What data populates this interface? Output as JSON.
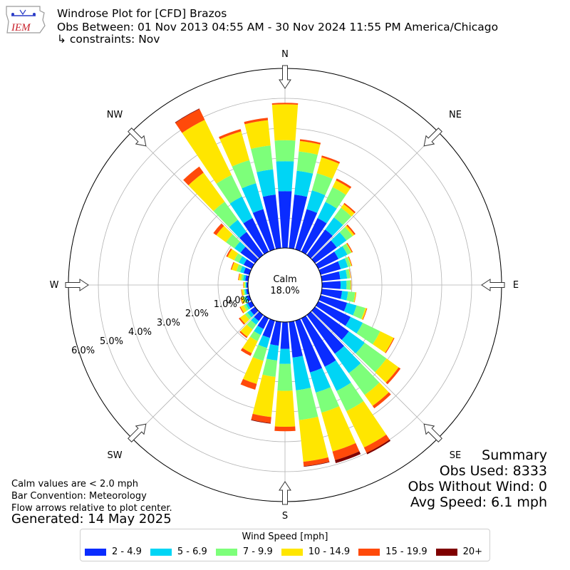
{
  "header": {
    "title": "Windrose Plot for [CFD] Brazos",
    "obs_between": "Obs Between: 01 Nov 2013 04:55 AM - 30 Nov 2024 11:55 PM America/Chicago",
    "constraints": "↳ constraints: Nov",
    "logo_text": "IEM"
  },
  "footer": {
    "calm_note": "Calm values are < 2.0 mph",
    "bar_convention": "Bar Convention: Meteorology",
    "flow_note": "Flow arrows relative to plot center.",
    "generated": "Generated: 14 May 2025"
  },
  "summary": {
    "title": "Summary",
    "obs_used": "Obs Used: 8333",
    "obs_without_wind": "Obs Without Wind: 0",
    "avg_speed": "Avg Speed: 6.1 mph"
  },
  "colors": {
    "bins": [
      "#0a2cff",
      "#00d5f5",
      "#7dff7a",
      "#ffe600",
      "#ff4a0a",
      "#7f0000"
    ],
    "grid": "#b3b3b3",
    "arrow_fill": "#ffffff"
  },
  "chart_data": {
    "type": "windrose",
    "calm": {
      "label": "Calm",
      "value_label": "18.0%",
      "value": 18.0
    },
    "radial_unit": "percent of observations",
    "radial_ticks": [
      "0.0%",
      "1.0%",
      "2.0%",
      "3.0%",
      "4.0%",
      "5.0%",
      "6.0%"
    ],
    "rmax": 6.0,
    "compass": [
      {
        "label": "N",
        "angle": 0
      },
      {
        "label": "NE",
        "angle": 45
      },
      {
        "label": "E",
        "angle": 90
      },
      {
        "label": "SE",
        "angle": 135
      },
      {
        "label": "S",
        "angle": 180
      },
      {
        "label": "SW",
        "angle": 225
      },
      {
        "label": "W",
        "angle": 270
      },
      {
        "label": "NW",
        "angle": 315
      }
    ],
    "legend_title": "Wind Speed [mph]",
    "bins": [
      "2 - 4.9",
      "5 - 6.9",
      "7 - 9.9",
      "10 - 14.9",
      "15 - 19.9",
      "20+"
    ],
    "sector_width_deg": 10,
    "directions": [
      0,
      10,
      20,
      30,
      40,
      50,
      60,
      70,
      80,
      90,
      100,
      110,
      120,
      130,
      140,
      150,
      160,
      170,
      180,
      190,
      200,
      210,
      220,
      230,
      240,
      250,
      260,
      270,
      280,
      290,
      300,
      310,
      320,
      330,
      340,
      350
    ],
    "cumulative": [
      [
        1.9,
        2.9,
        3.6,
        4.8,
        4.85,
        4.85
      ],
      [
        1.8,
        2.6,
        3.25,
        3.6,
        3.66,
        3.66
      ],
      [
        1.4,
        2.05,
        2.65,
        3.2,
        3.26,
        3.26
      ],
      [
        1.25,
        1.85,
        2.4,
        2.65,
        2.72,
        2.72
      ],
      [
        1.05,
        1.55,
        1.95,
        2.1,
        2.15,
        2.15
      ],
      [
        0.9,
        1.3,
        1.55,
        1.62,
        1.67,
        1.67
      ],
      [
        0.75,
        1.08,
        1.22,
        1.25,
        1.28,
        1.28
      ],
      [
        0.7,
        0.95,
        1.05,
        1.08,
        1.1,
        1.1
      ],
      [
        0.62,
        0.85,
        0.95,
        0.97,
        0.98,
        0.98
      ],
      [
        0.62,
        0.82,
        0.95,
        0.97,
        0.98,
        0.98
      ],
      [
        0.68,
        0.88,
        1.12,
        1.15,
        1.16,
        1.16
      ],
      [
        0.92,
        1.25,
        1.55,
        1.6,
        1.62,
        1.62
      ],
      [
        1.2,
        1.65,
        2.3,
        2.8,
        2.83,
        2.83
      ],
      [
        1.4,
        2.05,
        2.95,
        3.45,
        3.53,
        3.53
      ],
      [
        1.6,
        2.4,
        3.3,
        3.75,
        3.85,
        3.85
      ],
      [
        1.8,
        2.7,
        3.45,
        4.8,
        5.0,
        5.05
      ],
      [
        1.8,
        2.5,
        3.2,
        4.55,
        4.85,
        4.95
      ],
      [
        1.2,
        2.3,
        3.3,
        4.7,
        4.85,
        4.87
      ],
      [
        0.9,
        1.4,
        2.3,
        3.5,
        3.65,
        3.65
      ],
      [
        0.8,
        1.3,
        1.85,
        3.2,
        3.4,
        3.42
      ],
      [
        0.6,
        0.95,
        1.4,
        2.2,
        2.4,
        2.4
      ],
      [
        0.4,
        0.62,
        0.85,
        1.3,
        1.4,
        1.4
      ],
      [
        0.25,
        0.4,
        0.6,
        0.9,
        0.95,
        0.95
      ],
      [
        0.2,
        0.32,
        0.42,
        0.62,
        0.67,
        0.67
      ],
      [
        0.15,
        0.22,
        0.3,
        0.42,
        0.45,
        0.45
      ],
      [
        0.1,
        0.16,
        0.22,
        0.3,
        0.32,
        0.32
      ],
      [
        0.07,
        0.12,
        0.16,
        0.22,
        0.24,
        0.24
      ],
      [
        0.05,
        0.08,
        0.11,
        0.15,
        0.16,
        0.16
      ],
      [
        0.1,
        0.17,
        0.24,
        0.32,
        0.34,
        0.34
      ],
      [
        0.2,
        0.32,
        0.45,
        0.62,
        0.65,
        0.65
      ],
      [
        0.3,
        0.48,
        0.65,
        0.9,
        0.95,
        0.95
      ],
      [
        0.6,
        0.85,
        1.2,
        1.6,
        1.72,
        1.72
      ],
      [
        0.95,
        1.45,
        2.2,
        3.4,
        3.65,
        3.65
      ],
      [
        1.25,
        2.05,
        2.85,
        4.9,
        5.3,
        5.32
      ],
      [
        1.4,
        2.3,
        3.1,
        4.1,
        4.18,
        4.18
      ],
      [
        1.8,
        2.65,
        3.45,
        4.3,
        4.38,
        4.38
      ]
    ]
  }
}
